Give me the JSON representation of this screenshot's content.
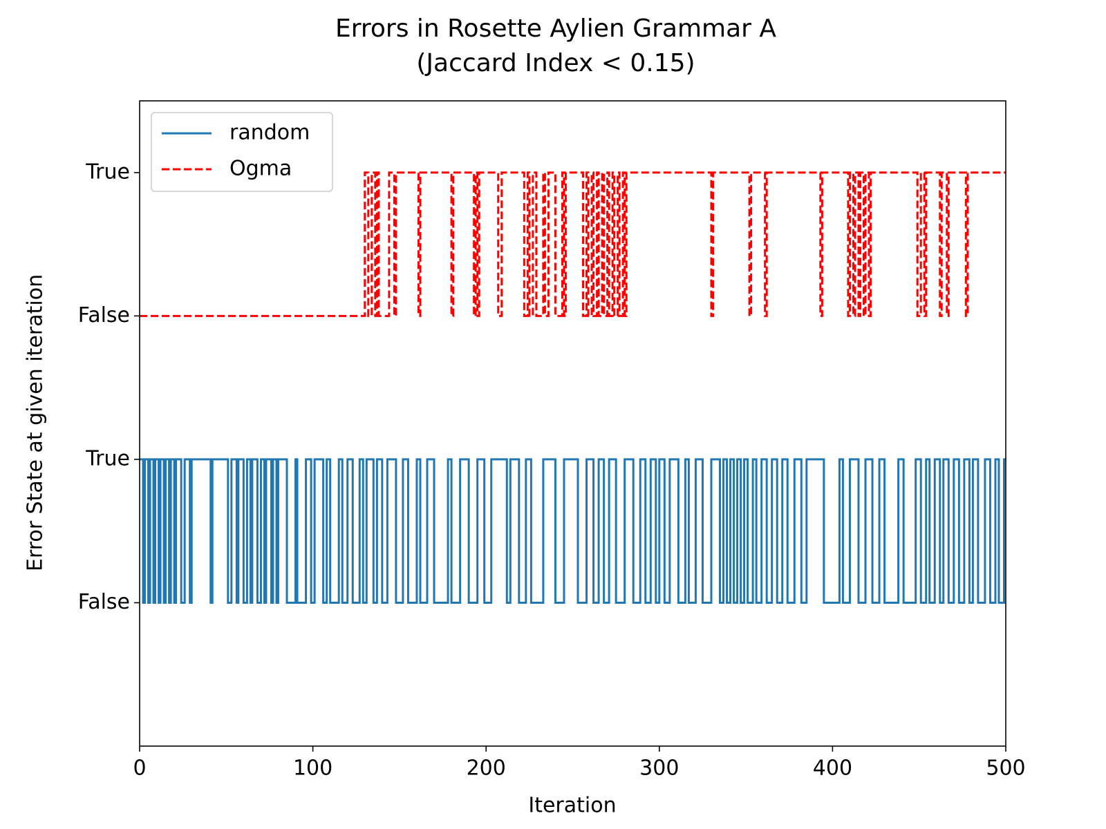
{
  "chart_data": {
    "type": "step",
    "title": "Errors in Rosette Aylien Grammar A",
    "subtitle": "(Jaccard Index < 0.15)",
    "xlabel": "Iteration",
    "ylabel": "Error State at given iteration",
    "xlim": [
      0,
      500
    ],
    "xticks": [
      0,
      100,
      200,
      300,
      400,
      500
    ],
    "ylim": [
      -1,
      3.5
    ],
    "yticks": [
      {
        "value": 0,
        "label": "False"
      },
      {
        "value": 1,
        "label": "True"
      },
      {
        "value": 2,
        "label": "False"
      },
      {
        "value": 3,
        "label": "True"
      }
    ],
    "legend": "upper left",
    "series": [
      {
        "name": "random",
        "color": "#1f77b4",
        "linestyle": "solid",
        "x": [
          0,
          2,
          3,
          5,
          6,
          8,
          9,
          11,
          12,
          14,
          15,
          17,
          18,
          20,
          21,
          24,
          26,
          29,
          30,
          41,
          42,
          51,
          53,
          56,
          57,
          60,
          62,
          64,
          65,
          68,
          70,
          72,
          73,
          76,
          77,
          79,
          80,
          85,
          90,
          91,
          96,
          99,
          101,
          106,
          108,
          110,
          115,
          117,
          120,
          123,
          127,
          129,
          131,
          135,
          137,
          140,
          143,
          148,
          152,
          155,
          160,
          162,
          166,
          170,
          178,
          180,
          185,
          190,
          195,
          199,
          203,
          212,
          214,
          219,
          223,
          226,
          233,
          240,
          245,
          253,
          258,
          262,
          265,
          268,
          271,
          275,
          280,
          285,
          289,
          292,
          295,
          298,
          300,
          303,
          306,
          311,
          315,
          317,
          321,
          325,
          330,
          335,
          337,
          339,
          341,
          343,
          345,
          347,
          349,
          351,
          354,
          356,
          359,
          362,
          365,
          368,
          371,
          374,
          378,
          382,
          385,
          395,
          404,
          406,
          410,
          415,
          419,
          423,
          427,
          430,
          438,
          441,
          448,
          451,
          454,
          456,
          459,
          462,
          464,
          467,
          470,
          473,
          476,
          479,
          481,
          484,
          488,
          491,
          494,
          496,
          499,
          500
        ],
        "values": [
          1,
          0,
          1,
          0,
          1,
          0,
          1,
          0,
          1,
          0,
          1,
          0,
          1,
          0,
          1,
          0,
          1,
          0,
          1,
          0,
          1,
          0,
          1,
          0,
          1,
          0,
          1,
          0,
          1,
          0,
          1,
          0,
          1,
          0,
          1,
          0,
          1,
          0,
          1,
          0,
          1,
          0,
          1,
          0,
          1,
          0,
          1,
          0,
          1,
          0,
          1,
          0,
          1,
          0,
          1,
          0,
          1,
          0,
          1,
          0,
          1,
          0,
          1,
          0,
          1,
          0,
          1,
          0,
          1,
          0,
          1,
          0,
          1,
          0,
          1,
          0,
          1,
          0,
          1,
          0,
          1,
          0,
          1,
          0,
          1,
          0,
          1,
          0,
          1,
          0,
          1,
          0,
          1,
          0,
          1,
          0,
          1,
          0,
          1,
          0,
          1,
          0,
          1,
          0,
          1,
          0,
          1,
          0,
          1,
          0,
          1,
          0,
          1,
          0,
          1,
          0,
          1,
          0,
          1,
          0,
          1,
          0,
          1,
          0,
          1,
          0,
          1,
          0,
          1,
          0,
          1,
          0,
          1,
          0,
          1,
          0,
          1,
          0,
          1,
          0,
          1,
          0,
          1,
          0,
          1,
          0,
          1,
          0,
          1,
          0,
          1,
          1
        ]
      },
      {
        "name": "Ogma",
        "color": "#ff0000",
        "linestyle": "dashed",
        "x": [
          0,
          130,
          132,
          134,
          136,
          137,
          138,
          144,
          147,
          148,
          161,
          162,
          180,
          181,
          193,
          194,
          195,
          196,
          207,
          209,
          222,
          224,
          225,
          227,
          229,
          233,
          234,
          236,
          240,
          244,
          245,
          246,
          256,
          258,
          259,
          261,
          262,
          264,
          265,
          267,
          268,
          270,
          271,
          273,
          274,
          276,
          277,
          279,
          280,
          281,
          330,
          331,
          352,
          353,
          361,
          362,
          393,
          394,
          409,
          410,
          412,
          413,
          415,
          416,
          418,
          419,
          421,
          422,
          449,
          451,
          453,
          454,
          462,
          463,
          466,
          467,
          477,
          478,
          500
        ],
        "values": [
          2,
          3,
          2,
          3,
          2,
          3,
          2,
          3,
          2,
          3,
          2,
          3,
          2,
          3,
          2,
          3,
          2,
          3,
          2,
          3,
          2,
          3,
          2,
          3,
          2,
          3,
          2,
          3,
          2,
          3,
          2,
          3,
          2,
          3,
          2,
          3,
          2,
          3,
          2,
          3,
          2,
          3,
          2,
          3,
          2,
          3,
          2,
          3,
          2,
          3,
          2,
          3,
          2,
          3,
          2,
          3,
          2,
          3,
          2,
          3,
          2,
          3,
          2,
          3,
          2,
          3,
          2,
          3,
          2,
          3,
          2,
          3,
          2,
          3,
          2,
          3,
          2,
          3,
          3
        ]
      }
    ]
  }
}
